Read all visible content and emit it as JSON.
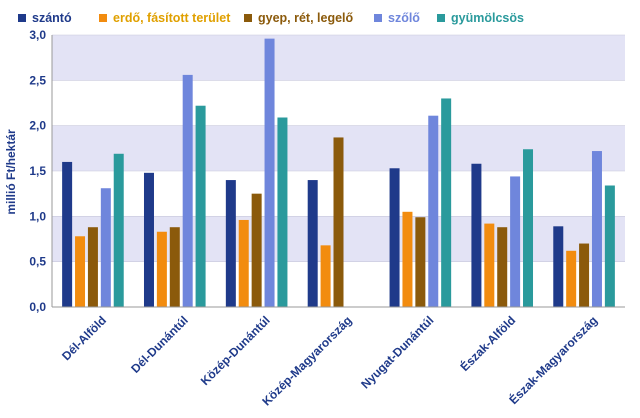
{
  "chart_data": {
    "type": "bar",
    "ylabel": "millió Ft/hektár",
    "ylim": [
      0,
      3.0
    ],
    "yticks": [
      "0,0",
      "0,5",
      "1,0",
      "1,5",
      "2,0",
      "2,5",
      "3,0"
    ],
    "grid": "horizontal bands",
    "legend_position": "top",
    "categories": [
      "Dél-Alföld",
      "Dél-Dunántúl",
      "Közép-Dunántúl",
      "Közép-Magyarország",
      "Nyugat-Dunántúl",
      "Észak-Alföld",
      "Észak-Magyarország"
    ],
    "series": [
      {
        "name": "szántó",
        "color": "#1f3a8a",
        "values": [
          1.6,
          1.48,
          1.4,
          1.4,
          1.53,
          1.58,
          0.89
        ]
      },
      {
        "name": "erdő, fásított terület",
        "color": "#f28c0f",
        "values": [
          0.78,
          0.83,
          0.96,
          0.68,
          1.05,
          0.92,
          0.62
        ]
      },
      {
        "name": "gyep, rét, legelő",
        "color": "#8b5a0b",
        "values": [
          0.88,
          0.88,
          1.25,
          1.87,
          0.99,
          0.88,
          0.7
        ]
      },
      {
        "name": "szőlő",
        "color": "#6f86dc",
        "values": [
          1.31,
          2.56,
          2.96,
          null,
          2.11,
          1.44,
          1.72
        ]
      },
      {
        "name": "gyümölcsös",
        "color": "#2a9a9c",
        "values": [
          1.69,
          2.22,
          2.09,
          null,
          2.3,
          1.74,
          1.34
        ]
      }
    ]
  }
}
